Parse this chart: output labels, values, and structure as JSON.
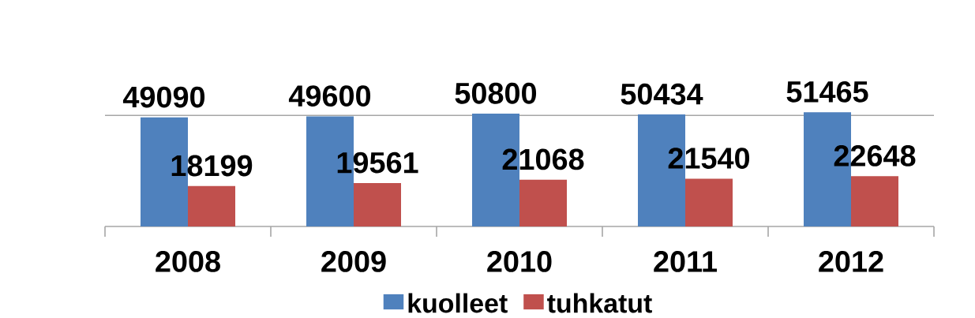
{
  "chart_data": {
    "type": "bar",
    "categories": [
      "2008",
      "2009",
      "2010",
      "2011",
      "2012"
    ],
    "series": [
      {
        "name": "kuolleet",
        "color": "#4f81bd",
        "values": [
          49090,
          49600,
          50800,
          50434,
          51465
        ]
      },
      {
        "name": "tuhkatut",
        "color": "#c0504d",
        "values": [
          18199,
          19561,
          21068,
          21540,
          22648
        ]
      }
    ],
    "ref_lines": [
      {
        "axis": "y",
        "value": 50000,
        "color": "#a6a6a6"
      }
    ],
    "data_labels": true,
    "legend": "bottom",
    "tick_labels": "x"
  }
}
